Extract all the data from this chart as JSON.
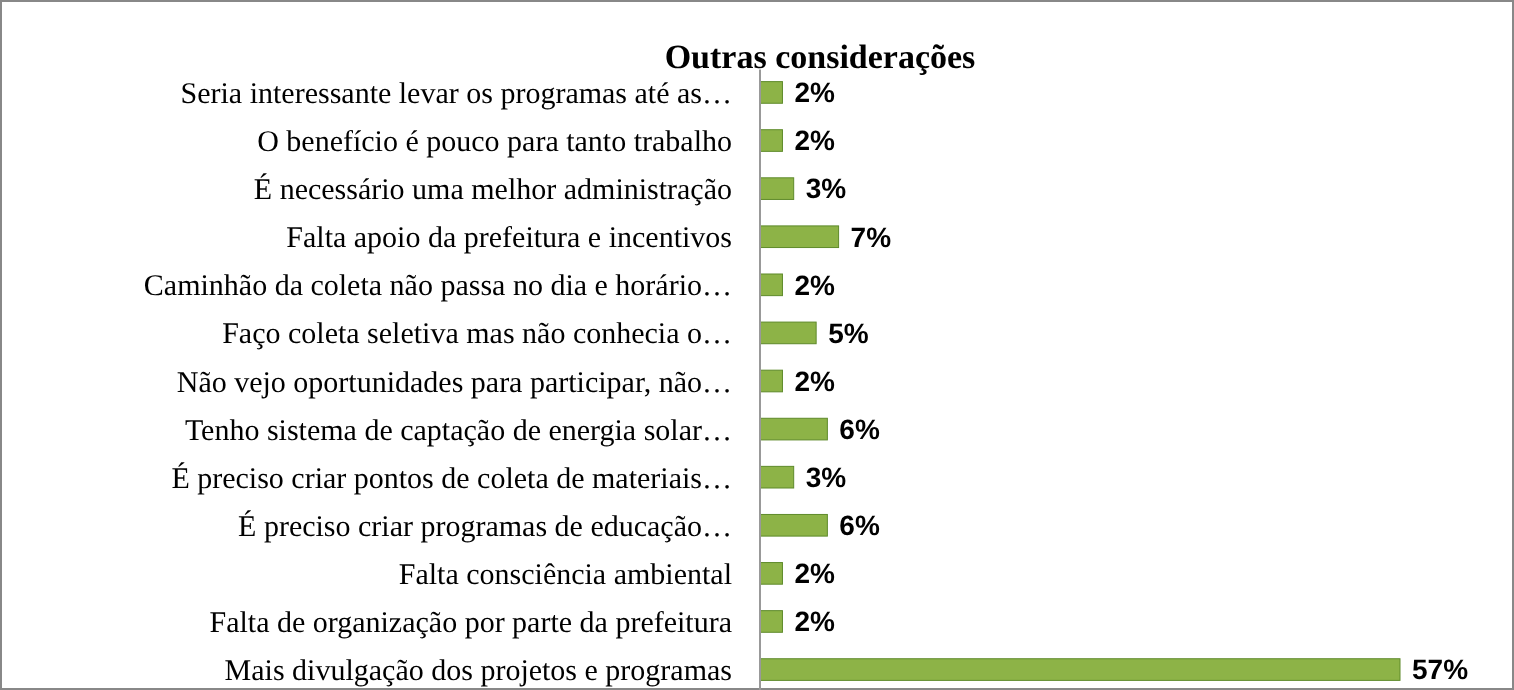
{
  "chart_data": {
    "type": "bar",
    "orientation": "horizontal",
    "title": "Outras considerações",
    "categories": [
      "Seria interessante levar os programas até as…",
      "O benefício é pouco para tanto trabalho",
      "É necessário uma melhor administração",
      "Falta apoio da prefeitura e incentivos",
      "Caminhão da coleta não passa no dia e horário…",
      "Faço coleta seletiva mas não conhecia o…",
      "Não vejo oportunidades para participar, não…",
      "Tenho sistema de captação de energia solar…",
      "É preciso criar pontos de coleta de materiais…",
      "É preciso criar programas de educação…",
      "Falta consciência ambiental",
      "Falta de organização por parte da  prefeitura",
      "Mais divulgação dos projetos e programas"
    ],
    "values": [
      2,
      2,
      3,
      7,
      2,
      5,
      2,
      6,
      3,
      6,
      2,
      2,
      57
    ],
    "value_labels": [
      "2%",
      "2%",
      "3%",
      "7%",
      "2%",
      "5%",
      "2%",
      "6%",
      "3%",
      "6%",
      "2%",
      "2%",
      "57%"
    ],
    "color": "#8db347"
  }
}
